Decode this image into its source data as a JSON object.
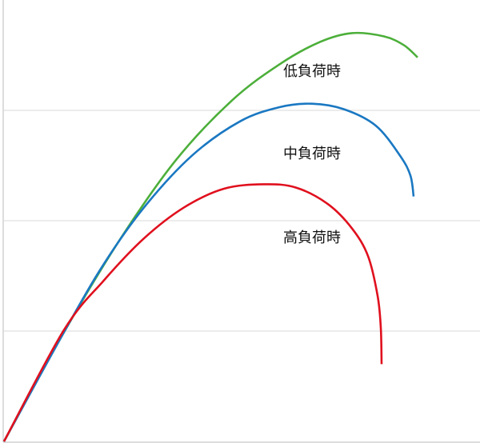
{
  "chart_data": {
    "type": "line",
    "xlim": [
      0,
      6
    ],
    "ylim": [
      0,
      4
    ],
    "yticks": [
      1,
      2,
      3
    ],
    "grid": true,
    "series": [
      {
        "name": "低負荷時",
        "color": "#4caf3a",
        "x": [
          0.05,
          0.8,
          1.5,
          2.2,
          2.9,
          3.5,
          4.0,
          4.4,
          4.8,
          5.05,
          5.22
        ],
        "values": [
          0,
          0.99,
          1.83,
          2.55,
          3.09,
          3.42,
          3.62,
          3.7,
          3.67,
          3.59,
          3.48
        ]
      },
      {
        "name": "中負荷時",
        "color": "#1a78c2",
        "x": [
          0.05,
          0.8,
          1.3,
          1.8,
          2.4,
          3.0,
          3.5,
          3.9,
          4.3,
          4.7,
          5.0,
          5.13,
          5.17
        ],
        "values": [
          0,
          0.99,
          1.61,
          2.12,
          2.59,
          2.9,
          3.03,
          3.06,
          3.01,
          2.86,
          2.59,
          2.41,
          2.22
        ]
      },
      {
        "name": "高負荷時",
        "color": "#e0101e",
        "x": [
          0.05,
          0.8,
          1.3,
          1.8,
          2.3,
          2.8,
          3.3,
          3.7,
          4.1,
          4.4,
          4.6,
          4.72,
          4.76,
          4.77
        ],
        "values": [
          0,
          1.01,
          1.46,
          1.84,
          2.12,
          2.29,
          2.33,
          2.3,
          2.15,
          1.93,
          1.68,
          1.32,
          1.03,
          0.7
        ]
      }
    ]
  }
}
